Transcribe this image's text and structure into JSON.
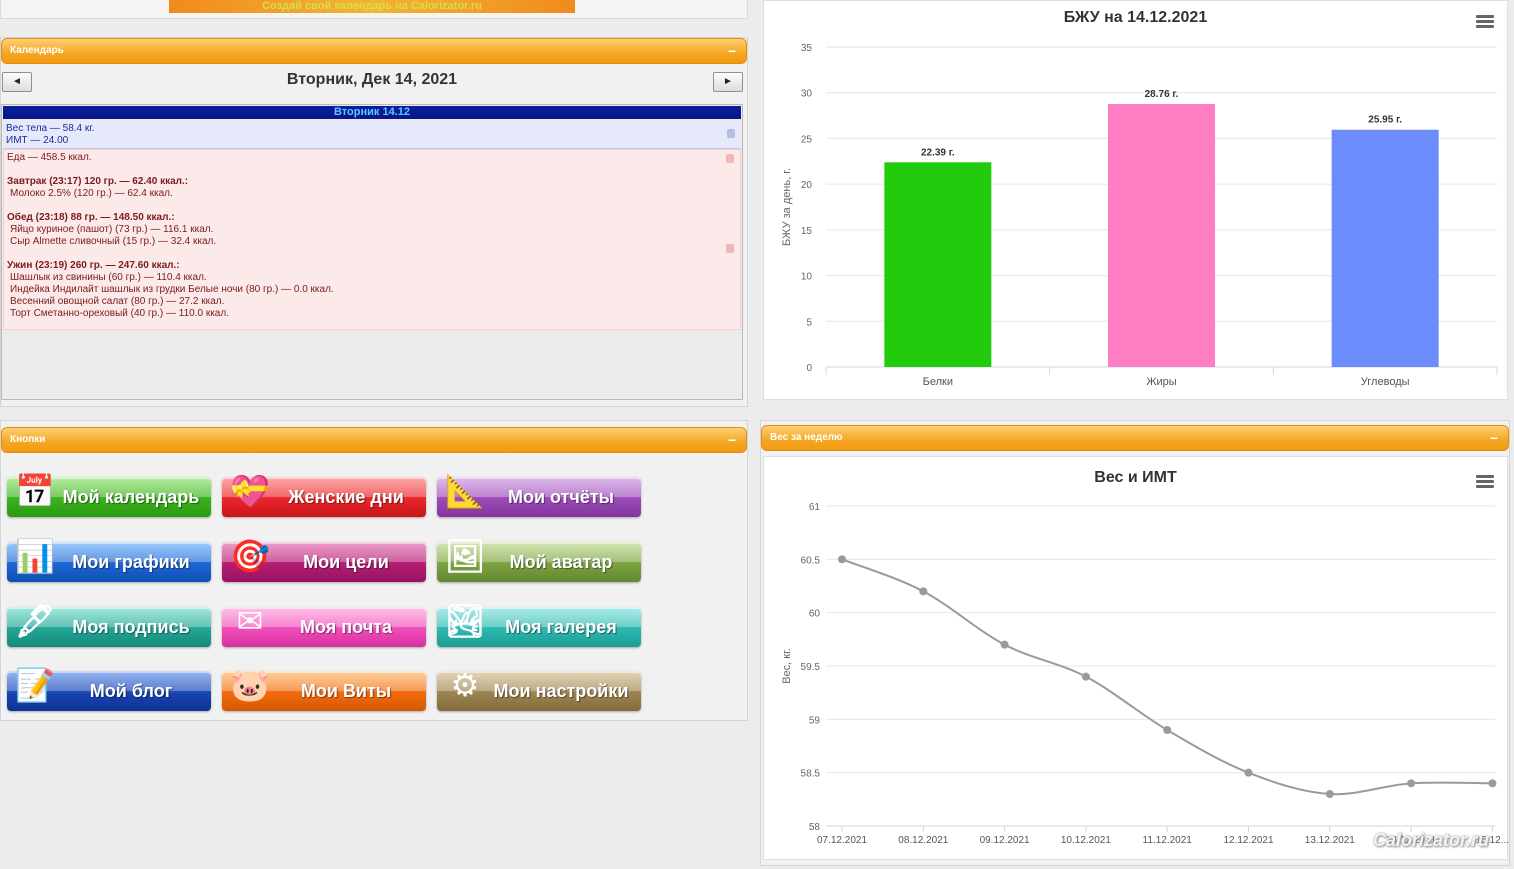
{
  "promo": {
    "text": "Создай свой календарь на Calorizator.ru"
  },
  "calendar_panel": {
    "title": "Календарь",
    "minimize": "−",
    "prev": "◄",
    "next": "►",
    "date_title": "Вторник, Дек 14, 2021",
    "day_bar": "Вторник 14.12",
    "weight_line": "Вес тела — 58.4 кг.",
    "bmi_line": "ИМТ — 24.00",
    "food_total": "Еда — 458.5 ккал.",
    "meals": [
      {
        "head": "Завтрак (23:17) 120 гр. — 62.40 ккал.:",
        "items": [
          "Молоко 2.5% (120 гр.) — 62.4 ккал."
        ]
      },
      {
        "head": "Обед (23:18) 88 гр. — 148.50 ккал.:",
        "items": [
          "Яйцо куриное (пашот) (73 гр.) — 116.1 ккал.",
          "Сыр Almette сливочный (15 гр.) — 32.4 ккал."
        ]
      },
      {
        "head": "Ужин (23:19) 260 гр. — 247.60 ккал.:",
        "items": [
          "Шашлык из свинины (60 гр.) — 110.4 ккал.",
          "Индейка Индилайт шашлык из грудки Белые ночи (80 гр.) — 0.0 ккал.",
          "Весенний овощной салат (80 гр.) — 27.2 ккал.",
          "Торт Сметанно-ореховый (40 гр.) — 110.0 ккал."
        ]
      }
    ]
  },
  "buttons_panel": {
    "title": "Кнопки",
    "minimize": "−",
    "buttons": [
      {
        "label": "Мой календарь",
        "icon": "calendar-icon",
        "glyph": "📅",
        "style": "g-green"
      },
      {
        "label": "Женские дни",
        "icon": "heart-icon",
        "glyph": "💝",
        "style": "g-red"
      },
      {
        "label": "Мои отчёты",
        "icon": "drafting-tools-icon",
        "glyph": "📐",
        "style": "g-purple"
      },
      {
        "label": "Мои графики",
        "icon": "bar-chart-icon",
        "glyph": "📊",
        "style": "g-blue"
      },
      {
        "label": "Мои цели",
        "icon": "target-icon",
        "glyph": "🎯",
        "style": "g-magenta"
      },
      {
        "label": "Мой аватар",
        "icon": "avatar-icon",
        "glyph": "🖼",
        "style": "g-olive"
      },
      {
        "label": "Моя подпись",
        "icon": "pen-icon",
        "glyph": "🖋",
        "style": "g-teal"
      },
      {
        "label": "Моя почта",
        "icon": "mail-icon",
        "glyph": "✉",
        "style": "g-pink"
      },
      {
        "label": "Моя галерея",
        "icon": "photo-icon",
        "glyph": "🏞",
        "style": "g-cyan"
      },
      {
        "label": "Мой блог",
        "icon": "notebook-icon",
        "glyph": "📝",
        "style": "g-navy"
      },
      {
        "label": "Мои Виты",
        "icon": "piggy-bank-icon",
        "glyph": "🐷",
        "style": "g-orange"
      },
      {
        "label": "Мои настройки",
        "icon": "gears-icon",
        "glyph": "⚙",
        "style": "g-tan"
      }
    ]
  },
  "weight_panel": {
    "title": "Вес за неделю",
    "minimize": "−"
  },
  "watermark": "Calorizator.ru",
  "chart_data": [
    {
      "type": "bar",
      "title": "БЖУ на 14.12.2021",
      "ylabel": "БЖУ за день, г.",
      "categories": [
        "Белки",
        "Жиры",
        "Углеводы"
      ],
      "values": [
        22.39,
        28.76,
        25.95
      ],
      "data_labels": [
        "22.39 г.",
        "28.76 г.",
        "25.95 г."
      ],
      "colors": [
        "#22cc0c",
        "#ff7ec3",
        "#6d8cfc"
      ],
      "ylim": [
        0,
        35
      ],
      "yticks": [
        "0",
        "5",
        "10",
        "15",
        "20",
        "25",
        "30",
        "35"
      ],
      "grid": true
    },
    {
      "type": "line",
      "title": "Вес и ИМТ",
      "ylabel": "Вес, кг.",
      "x": [
        "07.12.2021",
        "08.12.2021",
        "09.12.2021",
        "10.12.2021",
        "11.12.2021",
        "12.12.2021",
        "13.12.2021",
        "14.12.2021",
        "15.12..."
      ],
      "values": [
        60.5,
        60.2,
        59.7,
        59.4,
        58.9,
        58.5,
        58.3,
        58.4,
        58.4
      ],
      "ylim": [
        58,
        61
      ],
      "yticks": [
        "58",
        "58.5",
        "59",
        "59.5",
        "60",
        "60.5",
        "61"
      ],
      "color": "#9a9a9a",
      "grid": true
    }
  ]
}
